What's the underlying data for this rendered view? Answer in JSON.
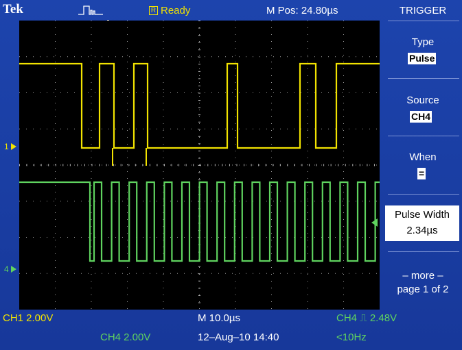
{
  "header": {
    "brand": "Tek",
    "acq_state_letter": "R",
    "acq_state": "Ready",
    "m_pos": "M Pos: 24.80µs",
    "trigger_icon": "pulse-trigger-icon"
  },
  "side_menu": {
    "title": "TRIGGER",
    "type_label": "Type",
    "type_value": "Pulse",
    "source_label": "Source",
    "source_value": "CH4",
    "when_label": "When",
    "when_value": "=",
    "pulse_width_label": "Pulse Width",
    "pulse_width_value": "2.34µs",
    "more_label": "– more –",
    "page_label": "page 1 of 2"
  },
  "markers": {
    "ch1": "1",
    "ch4": "4"
  },
  "footer": {
    "ch1_scale": "CH1  2.00V",
    "ch4_scale": "CH4  2.00V",
    "time_scale": "M 10.0µs",
    "datetime": "12–Aug–10 14:40",
    "trigger_readout": "CH4 ⎍ 2.48V",
    "frequency": "<10Hz"
  },
  "colors": {
    "ch1": "#f2e300",
    "ch4": "#5fd35f",
    "background": "#1d44ad",
    "screen": "#000000"
  }
}
